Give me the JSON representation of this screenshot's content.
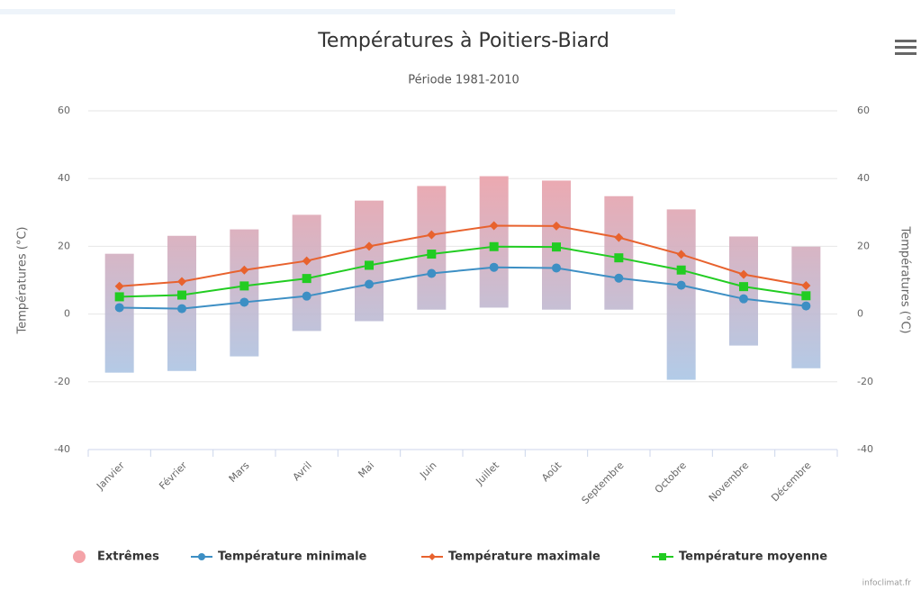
{
  "chart_data": {
    "type": "columnrange-line",
    "title": "Températures à Poitiers-Biard",
    "subtitle": "Période 1981-2010",
    "y_label": "Températures (°C)",
    "y2_label": "Températures (°C)",
    "credits": "infoclimat.fr",
    "categories": [
      "Janvier",
      "Février",
      "Mars",
      "Avril",
      "Mai",
      "Juin",
      "Juillet",
      "Août",
      "Septembre",
      "Octobre",
      "Novembre",
      "Décembre"
    ],
    "ylim": [
      -40,
      60
    ],
    "yticks": [
      -40,
      -20,
      0,
      20,
      40,
      60
    ],
    "y2lim": [
      -40,
      60
    ],
    "y2ticks": [
      -40,
      -20,
      0,
      20,
      40,
      60
    ],
    "grid": true,
    "legend": "bottom",
    "series": [
      {
        "name": "Extrêmes",
        "type": "columnrange",
        "color": "#f4a3a8",
        "gradient": [
          "#e9a0a9",
          "#a9c6e6"
        ],
        "low": [
          -17.3,
          -16.8,
          -12.5,
          -5,
          -2.1,
          1.3,
          1.9,
          1.3,
          1.3,
          -19.4,
          -9.3,
          -16
        ],
        "high": [
          17.8,
          23.1,
          25,
          29.3,
          33.5,
          37.8,
          40.7,
          39.4,
          34.8,
          30.9,
          22.9,
          19.9
        ]
      },
      {
        "name": "Température minimale",
        "type": "line",
        "color": "#3d8fc4",
        "marker": "circle",
        "values": [
          1.9,
          1.6,
          3.5,
          5.3,
          8.8,
          12,
          13.8,
          13.6,
          10.6,
          8.5,
          4.5,
          2.4
        ]
      },
      {
        "name": "Température maximale",
        "type": "line",
        "color": "#e8622e",
        "marker": "diamond",
        "values": [
          8.2,
          9.6,
          13,
          15.7,
          20,
          23.4,
          26.1,
          26,
          22.6,
          17.6,
          11.7,
          8.4
        ]
      },
      {
        "name": "Température moyenne",
        "type": "line",
        "color": "#22cc22",
        "marker": "square",
        "values": [
          5.1,
          5.6,
          8.3,
          10.5,
          14.4,
          17.7,
          19.9,
          19.8,
          16.6,
          13,
          8.1,
          5.4
        ]
      }
    ]
  }
}
